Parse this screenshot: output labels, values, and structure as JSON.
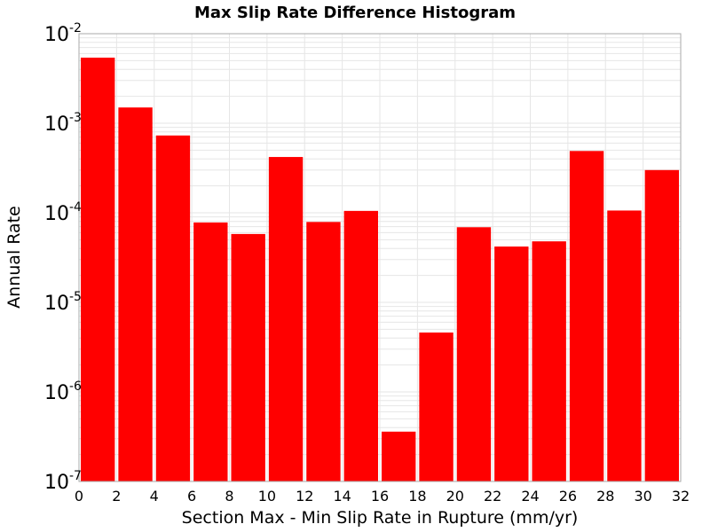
{
  "chart_data": {
    "type": "bar",
    "title": "Max Slip Rate Difference Histogram",
    "xlabel": "Section Max - Min Slip Rate in Rupture (mm/yr)",
    "ylabel": "Annual Rate",
    "x_scale": "linear",
    "y_scale": "log",
    "xlim": [
      0,
      32
    ],
    "ylim": [
      1e-07,
      0.01
    ],
    "grid": true,
    "legend": "none",
    "bar_color": "#ff0000",
    "grid_color": "#e6e6e6",
    "x_tick_labels": [
      "0",
      "2",
      "4",
      "6",
      "8",
      "10",
      "12",
      "14",
      "16",
      "18",
      "20",
      "22",
      "24",
      "26",
      "28",
      "30",
      "32"
    ],
    "y_ticks": [
      {
        "value": 1e-07,
        "base": "10",
        "exp": "-7"
      },
      {
        "value": 1e-06,
        "base": "10",
        "exp": "-6"
      },
      {
        "value": 1e-05,
        "base": "10",
        "exp": "-5"
      },
      {
        "value": 0.0001,
        "base": "10",
        "exp": "-4"
      },
      {
        "value": 0.001,
        "base": "10",
        "exp": "-3"
      },
      {
        "value": 0.01,
        "base": "10",
        "exp": "-2"
      }
    ],
    "bin_width": 2,
    "x": [
      1,
      3,
      5,
      7,
      9,
      11,
      13,
      15,
      17,
      19,
      21,
      23,
      25,
      27,
      29,
      31
    ],
    "values": [
      0.0054,
      0.0015,
      0.00073,
      7.8e-05,
      5.8e-05,
      0.00042,
      7.9e-05,
      0.000105,
      3.6e-07,
      4.6e-06,
      6.9e-05,
      4.2e-05,
      4.8e-05,
      0.00049,
      0.000106,
      0.0003
    ]
  }
}
